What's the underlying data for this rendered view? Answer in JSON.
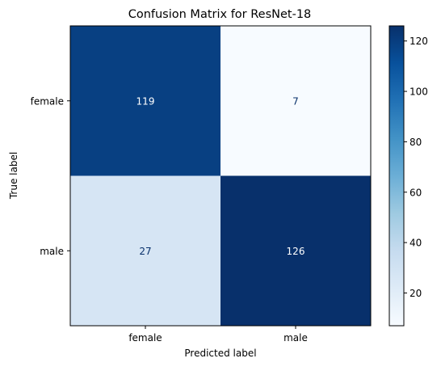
{
  "chart_data": {
    "type": "heatmap",
    "title": "Confusion Matrix for ResNet-18",
    "xlabel": "Predicted label",
    "ylabel": "True label",
    "x_categories": [
      "female",
      "male"
    ],
    "y_categories": [
      "female",
      "male"
    ],
    "values": [
      [
        119,
        7
      ],
      [
        27,
        126
      ]
    ],
    "colormap": "Blues",
    "color_range": [
      7,
      126
    ],
    "colorbar": {
      "ticks": [
        20,
        40,
        60,
        80,
        100,
        120
      ]
    }
  }
}
